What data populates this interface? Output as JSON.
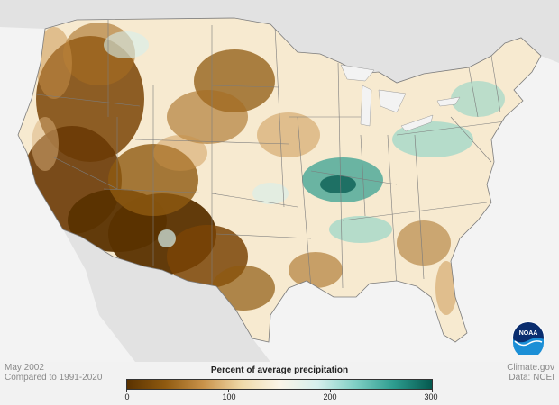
{
  "caption": {
    "date": "May 2002",
    "comparison": "Compared to 1991-2020"
  },
  "credits": {
    "site": "Climate.gov",
    "source": "Data: NCEI"
  },
  "legend": {
    "title": "Percent of average precipitation",
    "ticks": [
      "0",
      "100",
      "200",
      "300"
    ],
    "min": 0,
    "max": 300,
    "colors": [
      "#5a3200",
      "#8f5a10",
      "#c9924a",
      "#efd9a8",
      "#fbf5e8",
      "#d6efec",
      "#7fcfc4",
      "#2d9c8f",
      "#05594f"
    ]
  },
  "logo": {
    "name": "noaa-logo",
    "text": "NOAA"
  },
  "palette": {
    "land": "#f7ead0",
    "water": "#f3f3f3",
    "neighbor": "#e2e2e2",
    "border": "#7c7c7c"
  }
}
